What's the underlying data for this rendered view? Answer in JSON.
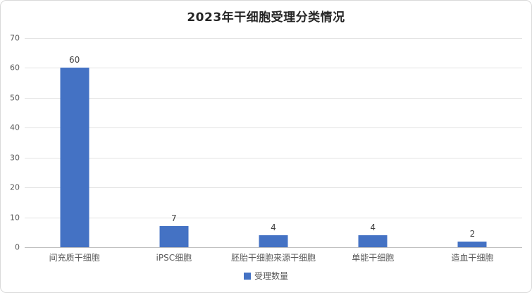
{
  "card": {
    "title": "2023年干细胞受理分类情况"
  },
  "legend": {
    "label": "受理数量"
  },
  "colors": {
    "bar": "#4472c4",
    "grid": "#e2e2e2",
    "axis_line": "#bfbfbf",
    "tick_text": "#595959",
    "value_label": "#404040",
    "title_text": "#262626"
  },
  "chart_data": {
    "type": "bar",
    "title": "2023年干细胞受理分类情况",
    "categories": [
      "间充质干细胞",
      "iPSC细胞",
      "胚胎干细胞来源干细胞",
      "单能干细胞",
      "造血干细胞"
    ],
    "series": [
      {
        "name": "受理数量",
        "values": [
          60,
          7,
          4,
          4,
          2
        ]
      }
    ],
    "xlabel": "",
    "ylabel": "",
    "ylim": [
      0,
      70
    ],
    "ytick_step": 10,
    "grid": true,
    "data_labels_shown": true,
    "legend_position": "bottom"
  }
}
